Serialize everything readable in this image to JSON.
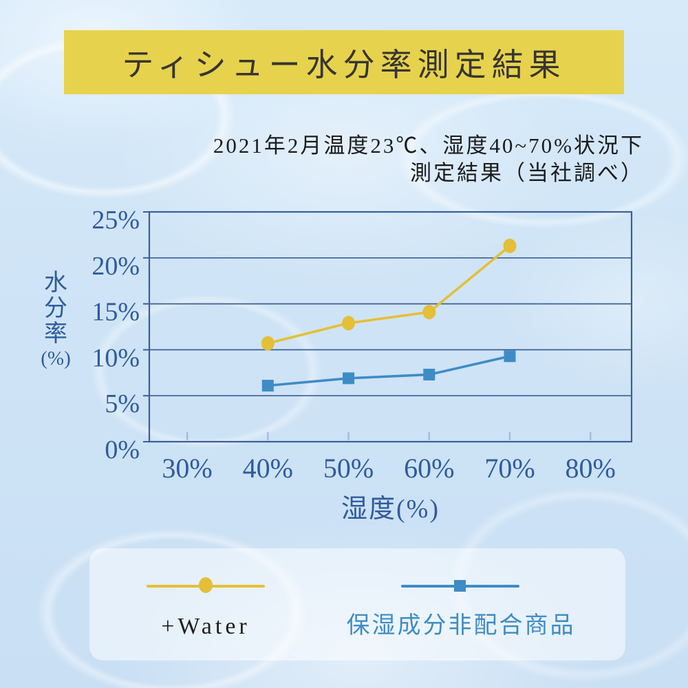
{
  "title": {
    "text": "ティシュー水分率測定結果",
    "banner_color": "#e7d24d",
    "text_color": "#363531"
  },
  "subtitle": {
    "line1": "2021年2月温度23℃、湿度40~70%状況下",
    "line2": "測定結果（当社調べ）"
  },
  "chart_data": {
    "type": "line",
    "title": "ティシュー水分率測定結果",
    "xlabel": "湿度(%)",
    "ylabel": "水分率(%)",
    "ylabel_lines": [
      "水",
      "分",
      "率",
      "(%)"
    ],
    "categories": [
      40,
      50,
      60,
      70
    ],
    "series": [
      {
        "name": "+Water",
        "color": "#e4bf37",
        "marker": "circle",
        "values": [
          10.7,
          12.9,
          14.1,
          21.3
        ]
      },
      {
        "name": "保湿成分非配合商品",
        "color": "#3e8cc6",
        "marker": "square",
        "values": [
          6.1,
          6.9,
          7.3,
          9.3
        ]
      }
    ],
    "x_ticks": [
      "30%",
      "40%",
      "50%",
      "60%",
      "70%",
      "80%"
    ],
    "x_tick_values": [
      30,
      40,
      50,
      60,
      70,
      80
    ],
    "y_ticks": [
      "0%",
      "5%",
      "10%",
      "15%",
      "20%",
      "25%"
    ],
    "y_tick_values": [
      0,
      5,
      10,
      15,
      20,
      25
    ],
    "xlim": [
      25.3,
      85.1
    ],
    "ylim": [
      0,
      25
    ],
    "grid": true,
    "legend_position": "bottom",
    "axis_color": "#3a5f98",
    "tick_label_color": "#2e5b9d",
    "x_tick_mark_color": "#9fbedd"
  },
  "legend": [
    {
      "label": "+Water",
      "color": "#e4bf37",
      "marker": "circle",
      "label_color": "#1f1e1c"
    },
    {
      "label": "保湿成分非配合商品",
      "color": "#3e8cc6",
      "marker": "square",
      "label_color": "#3e8cc6"
    }
  ]
}
